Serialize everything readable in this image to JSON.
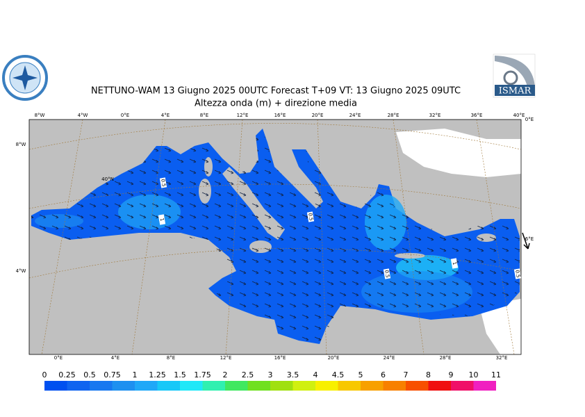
{
  "header": {
    "title": "NETTUNO-WAM  13   Giugno  2025 00UTC Forecast T+09 VT: 13   Giugno  2025 09UTC",
    "subtitle": "Altezza onda (m) + direzione media"
  },
  "graticule": {
    "top": [
      "8°W",
      "4°W",
      "0°E",
      "4°E",
      "8°E",
      "12°E",
      "16°E",
      "20°E",
      "24°E",
      "28°E",
      "32°E",
      "36°E",
      "40°E"
    ],
    "bottom": [
      "0°E",
      "4°E",
      "8°E",
      "12°E",
      "16°E",
      "20°E",
      "24°E",
      "28°E",
      "32°E"
    ],
    "left": [
      "8°W",
      "4°W"
    ],
    "inner": [
      "40°N"
    ],
    "right": [
      "0°E",
      "6°E"
    ]
  },
  "contour_labels": [
    "0.5",
    "1",
    "0.5",
    "0.5",
    "1",
    "0.5"
  ],
  "colorbar": {
    "levels": [
      0,
      0.25,
      0.5,
      0.75,
      1,
      1.25,
      1.5,
      1.75,
      2,
      2.5,
      3,
      3.5,
      4,
      4.5,
      5,
      6,
      7,
      8,
      9,
      10,
      11
    ],
    "colors": [
      "#0050f0",
      "#1064f0",
      "#1878f0",
      "#1e90f0",
      "#20a8f8",
      "#18c8f8",
      "#20e8f8",
      "#30f0b0",
      "#40e860",
      "#70e020",
      "#a0e010",
      "#d0f010",
      "#f8f000",
      "#f8c800",
      "#f8a000",
      "#f88000",
      "#f85000",
      "#f01010",
      "#f01068",
      "#f020c0"
    ]
  }
}
